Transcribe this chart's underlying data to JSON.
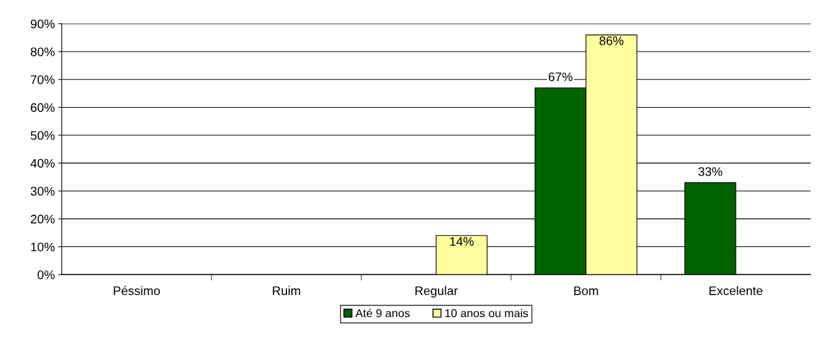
{
  "chart_data": {
    "type": "bar",
    "categories": [
      "Péssimo",
      "Ruim",
      "Regular",
      "Bom",
      "Excelente"
    ],
    "series": [
      {
        "name": "Até 9 anos",
        "color": "#006400",
        "values": [
          null,
          null,
          null,
          67,
          33
        ],
        "value_labels": [
          null,
          null,
          null,
          "67%",
          "33%"
        ]
      },
      {
        "name": "10 anos ou mais",
        "color": "#ffffa0",
        "values": [
          null,
          null,
          14,
          86,
          null
        ],
        "value_labels": [
          null,
          null,
          "14%",
          "86%",
          null
        ]
      }
    ],
    "ylim": [
      0,
      90
    ],
    "yticks": [
      {
        "value": 0,
        "label": "0%"
      },
      {
        "value": 10,
        "label": "10%"
      },
      {
        "value": 20,
        "label": "20%"
      },
      {
        "value": 30,
        "label": "30%"
      },
      {
        "value": 40,
        "label": "40%"
      },
      {
        "value": 50,
        "label": "50%"
      },
      {
        "value": 60,
        "label": "60%"
      },
      {
        "value": 70,
        "label": "70%"
      },
      {
        "value": 80,
        "label": "80%"
      },
      {
        "value": 90,
        "label": "90%"
      }
    ],
    "grid": "y",
    "legend": "bottom"
  }
}
